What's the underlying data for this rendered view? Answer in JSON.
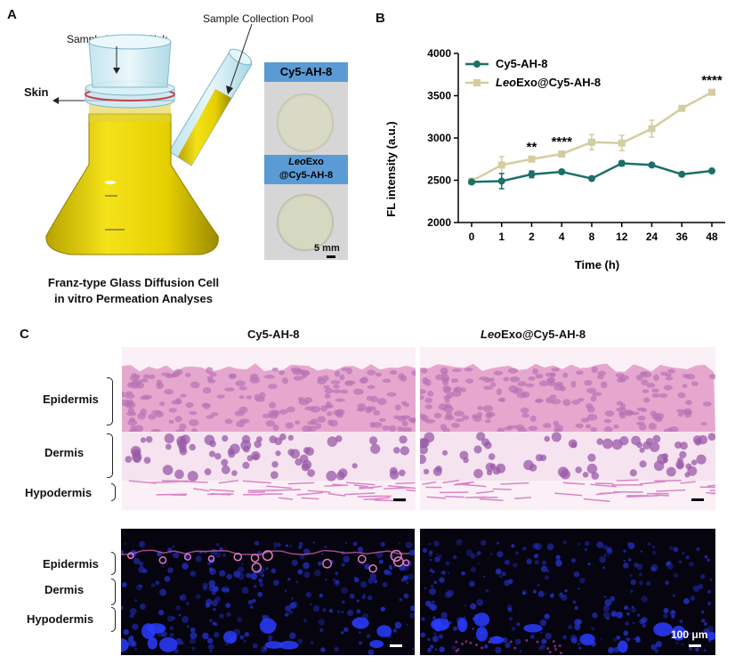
{
  "panels": {
    "a": {
      "letter": "A",
      "sample_loading_sink": "Sample Loading Sink",
      "sample_collection_pool": "Sample Collection Pool",
      "skin": "Skin",
      "caption_line1": "Franz-type Glass Diffusion Cell",
      "caption_line2": "in vitro Permeation Analyses",
      "sample1_label": "Cy5-AH-8",
      "sample2_label_line1_italic": "Leo",
      "sample2_label_line1_rest": "Exo",
      "sample2_label_line2": "@Cy5-AH-8",
      "scale_label": "5 mm"
    },
    "b": {
      "letter": "B"
    },
    "c": {
      "letter": "C",
      "col1_title": "Cy5-AH-8",
      "col2_title_italic": "Leo",
      "col2_title_rest": "Exo@Cy5-AH-8",
      "layers": [
        "Epidermis",
        "Dermis",
        "Hypodermis"
      ],
      "scale_label": "100 μm"
    }
  },
  "chart_data": {
    "type": "line",
    "x": [
      "0",
      "1",
      "2",
      "4",
      "8",
      "12",
      "24",
      "36",
      "48"
    ],
    "xlabel": "Time (h)",
    "ylabel": "FL intensity (a.u.)",
    "ylim": [
      2000,
      4000
    ],
    "yticks": [
      2000,
      2500,
      3000,
      3500,
      4000
    ],
    "legend_position": "top-left",
    "series": [
      {
        "name": "Cy5-AH-8",
        "name_italic": "",
        "name_rest": "Cy5-AH-8",
        "color": "#1b7068",
        "marker": "circle",
        "values": [
          2480,
          2490,
          2570,
          2600,
          2520,
          2700,
          2680,
          2570,
          2610
        ],
        "errors": [
          15,
          90,
          40,
          20,
          15,
          30,
          15,
          15,
          15
        ]
      },
      {
        "name": "LeoExo@Cy5-AH-8",
        "name_italic": "Leo",
        "name_rest": "Exo@Cy5-AH-8",
        "color": "#d3cda0",
        "marker": "square",
        "values": [
          2490,
          2680,
          2750,
          2810,
          2950,
          2940,
          3110,
          3350,
          3540
        ],
        "errors": [
          15,
          100,
          30,
          30,
          90,
          90,
          100,
          20,
          30
        ]
      }
    ],
    "annotations": [
      {
        "x_index": 2,
        "text": "**"
      },
      {
        "x_index": 3,
        "text": "****"
      },
      {
        "x_index": 8,
        "text": "****"
      }
    ]
  }
}
